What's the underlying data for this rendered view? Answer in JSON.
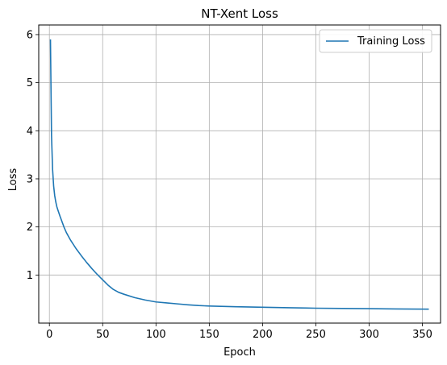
{
  "chart_data": {
    "type": "line",
    "title": "NT-Xent Loss",
    "xlabel": "Epoch",
    "ylabel": "Loss",
    "xlim": [
      -10,
      367
    ],
    "ylim": [
      0.0,
      6.2
    ],
    "xticks": [
      0,
      50,
      100,
      150,
      200,
      250,
      300,
      350
    ],
    "yticks": [
      1,
      2,
      3,
      4,
      5,
      6
    ],
    "grid": true,
    "legend_position": "top-right",
    "series": [
      {
        "name": "Training Loss",
        "color": "#1f77b4",
        "x": [
          1,
          2,
          3,
          4,
          5,
          6,
          7,
          8,
          10,
          12,
          14,
          16,
          18,
          20,
          25,
          30,
          35,
          40,
          45,
          50,
          55,
          60,
          65,
          70,
          80,
          90,
          100,
          110,
          120,
          130,
          140,
          150,
          175,
          200,
          225,
          250,
          275,
          300,
          325,
          356
        ],
        "y": [
          5.9,
          3.9,
          3.2,
          2.85,
          2.65,
          2.52,
          2.42,
          2.35,
          2.22,
          2.1,
          1.98,
          1.88,
          1.8,
          1.72,
          1.55,
          1.4,
          1.26,
          1.13,
          1.01,
          0.9,
          0.79,
          0.7,
          0.64,
          0.6,
          0.53,
          0.48,
          0.44,
          0.42,
          0.4,
          0.38,
          0.365,
          0.355,
          0.34,
          0.33,
          0.32,
          0.31,
          0.305,
          0.3,
          0.295,
          0.29
        ]
      }
    ]
  }
}
